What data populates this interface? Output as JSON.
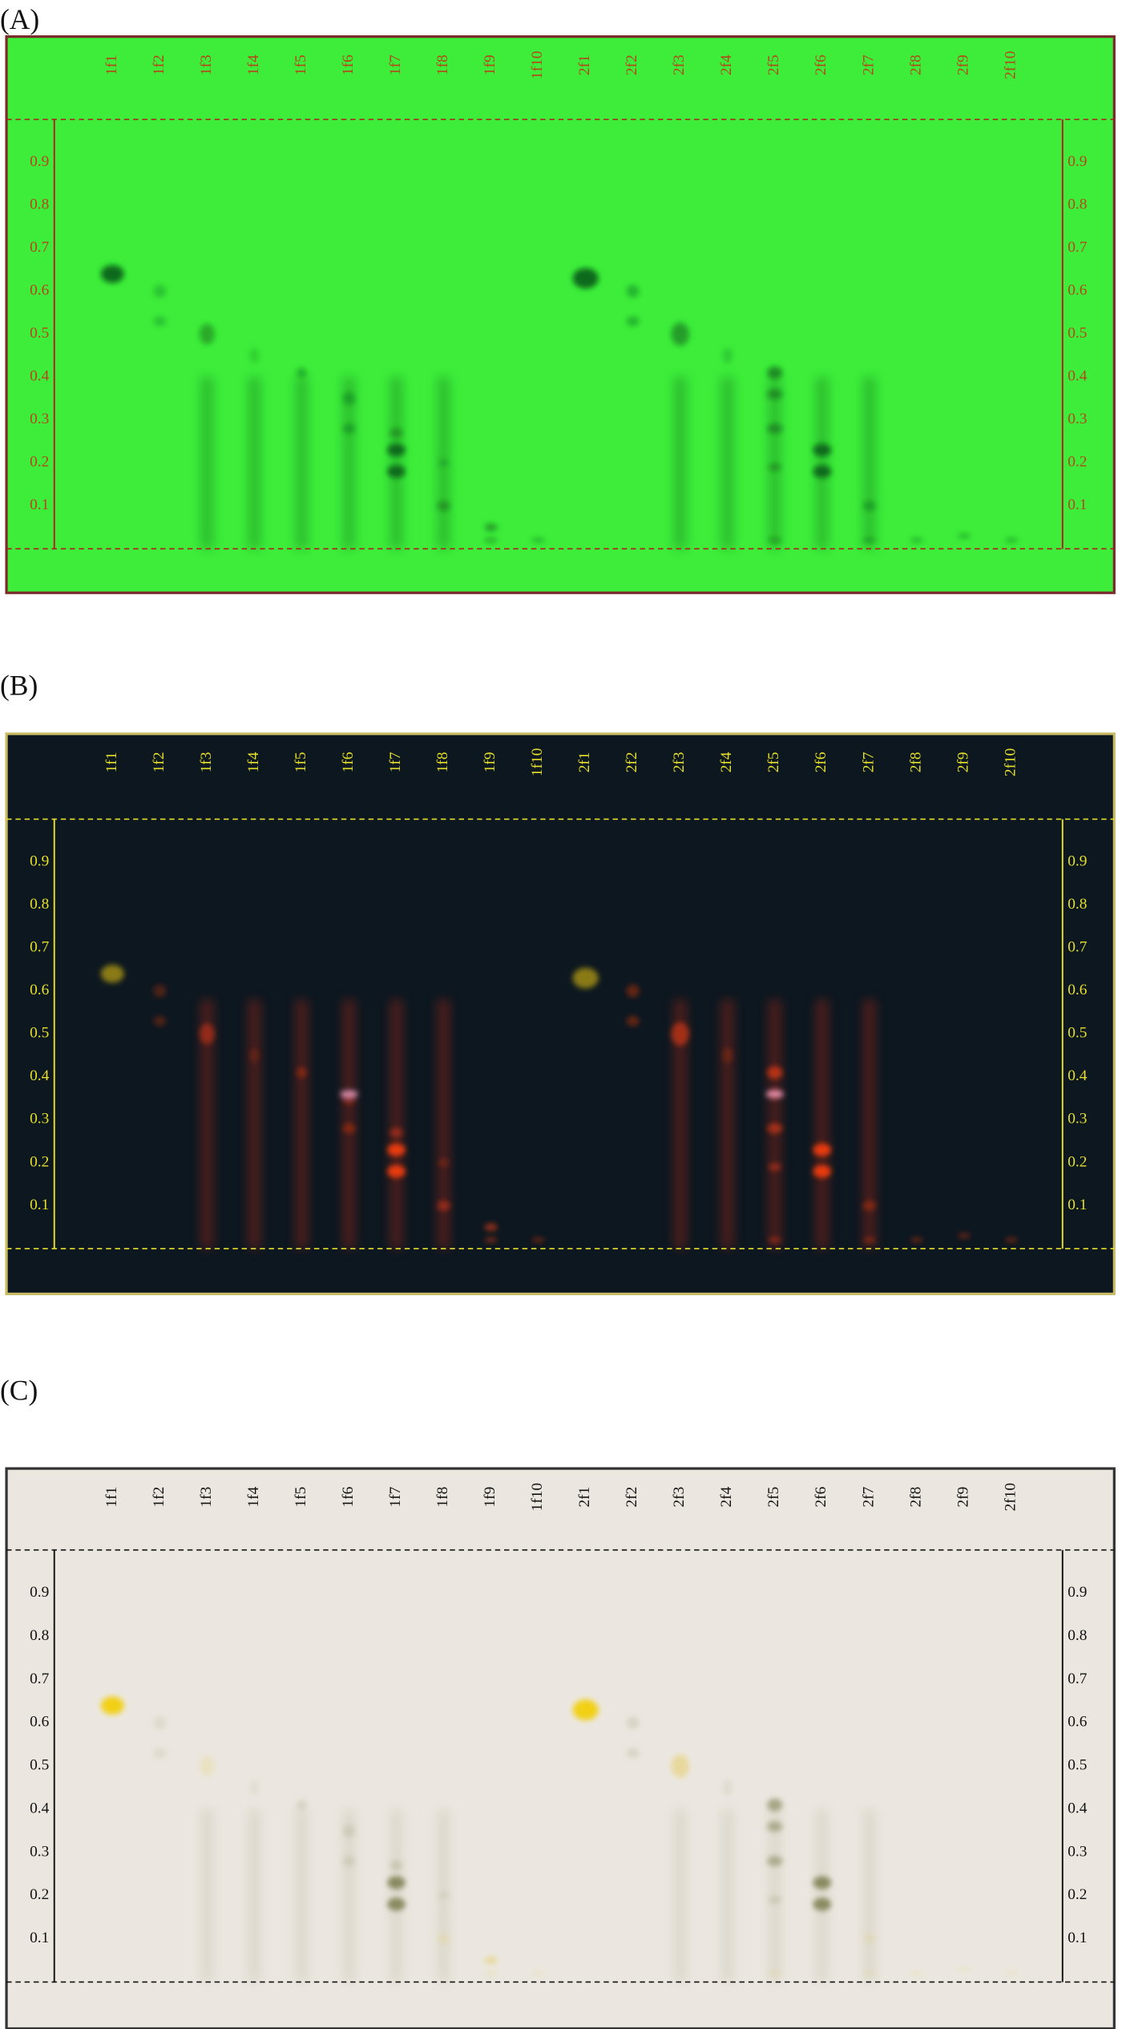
{
  "panels": [
    {
      "label": "(A)",
      "lanes": [
        "1f1",
        "1f2",
        "1f3",
        "1f4",
        "1f5",
        "1f6",
        "1f7",
        "1f8",
        "1f9",
        "1f10",
        "2f1",
        "2f2",
        "2f3",
        "2f4",
        "2f5",
        "2f6",
        "2f7",
        "2f8",
        "2f9",
        "2f10"
      ],
      "rf_ticks": [
        "0.9",
        "0.8",
        "0.7",
        "0.6",
        "0.5",
        "0.4",
        "0.3",
        "0.2",
        "0.1"
      ]
    },
    {
      "label": "(B)",
      "lanes": [
        "1f1",
        "1f2",
        "1f3",
        "1f4",
        "1f5",
        "1f6",
        "1f7",
        "1f8",
        "1f9",
        "1f10",
        "2f1",
        "2f2",
        "2f3",
        "2f4",
        "2f5",
        "2f6",
        "2f7",
        "2f8",
        "2f9",
        "2f10"
      ],
      "rf_ticks": [
        "0.9",
        "0.8",
        "0.7",
        "0.6",
        "0.5",
        "0.4",
        "0.3",
        "0.2",
        "0.1"
      ]
    },
    {
      "label": "(C)",
      "lanes": [
        "1f1",
        "1f2",
        "1f3",
        "1f4",
        "1f5",
        "1f6",
        "1f7",
        "1f8",
        "1f9",
        "1f10",
        "2f1",
        "2f2",
        "2f3",
        "2f4",
        "2f5",
        "2f6",
        "2f7",
        "2f8",
        "2f9",
        "2f10"
      ],
      "rf_ticks": [
        "0.9",
        "0.8",
        "0.7",
        "0.6",
        "0.5",
        "0.4",
        "0.3",
        "0.2",
        "0.1"
      ]
    }
  ]
}
